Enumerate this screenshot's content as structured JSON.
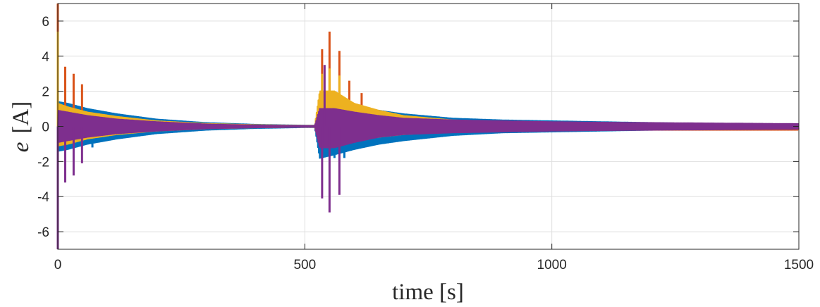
{
  "chart_data": {
    "type": "line",
    "title": "",
    "xlabel": "time [s]",
    "ylabel_symbol": "e",
    "ylabel_unit": "[A]",
    "xlim": [
      0,
      1500
    ],
    "ylim": [
      -7,
      7
    ],
    "xticks": [
      0,
      500,
      1000,
      1500
    ],
    "yticks": [
      -6,
      -4,
      -2,
      0,
      2,
      4,
      6
    ],
    "grid": true,
    "legend": "none",
    "series": [
      {
        "color": "#0072BD",
        "envelope": {
          "t": [
            0,
            20,
            60,
            120,
            200,
            300,
            400,
            500,
            520,
            530,
            560,
            600,
            650,
            700,
            800,
            900,
            1000,
            1100,
            1200,
            1300,
            1400,
            1500
          ],
          "upper": [
            1.4,
            1.3,
            1.0,
            0.7,
            0.4,
            0.2,
            0.1,
            0.05,
            0.05,
            1.2,
            1.4,
            1.2,
            0.9,
            0.7,
            0.45,
            0.35,
            0.3,
            0.25,
            0.2,
            0.15,
            0.12,
            0.1
          ],
          "lower": [
            -1.4,
            -1.3,
            -1.0,
            -0.7,
            -0.4,
            -0.2,
            -0.1,
            -0.05,
            -0.05,
            -1.8,
            -1.6,
            -1.3,
            -1.0,
            -0.8,
            -0.5,
            -0.35,
            -0.3,
            -0.25,
            -0.2,
            -0.15,
            -0.12,
            -0.1
          ]
        },
        "spikes": [
          {
            "t": 0,
            "value": -1.2
          },
          {
            "t": 70,
            "value": -1.2
          },
          {
            "t": 560,
            "value": -1.8
          },
          {
            "t": 580,
            "value": -1.8
          }
        ]
      },
      {
        "color": "#D95319",
        "envelope": {
          "t": [
            0,
            20,
            60,
            120,
            200,
            300,
            400,
            500,
            520,
            530,
            560,
            600,
            650,
            700,
            800,
            900,
            1000,
            1100,
            1200,
            1300,
            1400,
            1500
          ],
          "upper": [
            0.8,
            0.7,
            0.5,
            0.35,
            0.2,
            0.1,
            0.05,
            0.03,
            0.03,
            0.8,
            0.8,
            0.6,
            0.45,
            0.35,
            0.25,
            0.2,
            0.18,
            0.15,
            0.12,
            0.1,
            0.08,
            0.06
          ],
          "lower": [
            -0.6,
            -0.5,
            -0.4,
            -0.3,
            -0.2,
            -0.1,
            -0.05,
            -0.03,
            -0.03,
            -0.7,
            -0.7,
            -0.5,
            -0.4,
            -0.3,
            -0.25,
            -0.2,
            -0.2,
            -0.2,
            -0.2,
            -0.2,
            -0.2,
            -0.2
          ]
        },
        "spikes": [
          {
            "t": 0,
            "value": 7.0
          },
          {
            "t": 15,
            "value": 3.4
          },
          {
            "t": 32,
            "value": 3.0
          },
          {
            "t": 49,
            "value": 2.4
          },
          {
            "t": 535,
            "value": 4.4
          },
          {
            "t": 550,
            "value": 5.4
          },
          {
            "t": 570,
            "value": 4.3
          },
          {
            "t": 590,
            "value": 2.6
          },
          {
            "t": 615,
            "value": 1.9
          }
        ]
      },
      {
        "color": "#EDB120",
        "envelope": {
          "t": [
            0,
            20,
            60,
            120,
            200,
            300,
            400,
            500,
            520,
            530,
            560,
            600,
            650,
            700,
            800,
            900,
            1000,
            1100,
            1200,
            1300,
            1400,
            1500
          ],
          "upper": [
            1.3,
            1.1,
            0.8,
            0.55,
            0.3,
            0.15,
            0.08,
            0.04,
            0.04,
            2.0,
            2.0,
            1.3,
            0.9,
            0.6,
            0.35,
            0.25,
            0.2,
            0.15,
            0.12,
            0.1,
            0.08,
            0.06
          ],
          "lower": [
            -1.1,
            -1.0,
            -0.7,
            -0.45,
            -0.25,
            -0.12,
            -0.06,
            -0.03,
            -0.03,
            -1.0,
            -1.0,
            -0.8,
            -0.6,
            -0.45,
            -0.3,
            -0.2,
            -0.15,
            -0.12,
            -0.1,
            -0.08,
            -0.06,
            -0.05
          ]
        },
        "spikes": [
          {
            "t": 0,
            "value": 5.4
          },
          {
            "t": 535,
            "value": 3.0
          },
          {
            "t": 550,
            "value": 3.3
          },
          {
            "t": 570,
            "value": 2.9
          }
        ]
      },
      {
        "color": "#7E2F8E",
        "envelope": {
          "t": [
            0,
            20,
            60,
            120,
            200,
            300,
            400,
            500,
            520,
            530,
            560,
            600,
            650,
            700,
            800,
            900,
            1000,
            1100,
            1200,
            1300,
            1400,
            1500
          ],
          "upper": [
            0.9,
            0.8,
            0.6,
            0.4,
            0.25,
            0.12,
            0.06,
            0.03,
            0.03,
            1.0,
            1.0,
            0.8,
            0.6,
            0.45,
            0.35,
            0.3,
            0.25,
            0.22,
            0.2,
            0.18,
            0.16,
            0.14
          ],
          "lower": [
            -0.9,
            -0.8,
            -0.6,
            -0.4,
            -0.25,
            -0.12,
            -0.06,
            -0.03,
            -0.03,
            -1.2,
            -1.2,
            -0.9,
            -0.6,
            -0.45,
            -0.35,
            -0.3,
            -0.25,
            -0.22,
            -0.2,
            -0.18,
            -0.16,
            -0.14
          ]
        },
        "spikes": [
          {
            "t": 0,
            "value": -7.0
          },
          {
            "t": 15,
            "value": -3.2
          },
          {
            "t": 32,
            "value": -2.8
          },
          {
            "t": 49,
            "value": -2.1
          },
          {
            "t": 535,
            "value": -4.1
          },
          {
            "t": 550,
            "value": -4.9
          },
          {
            "t": 570,
            "value": -3.9
          },
          {
            "t": 540,
            "value": 3.5
          }
        ]
      }
    ]
  }
}
